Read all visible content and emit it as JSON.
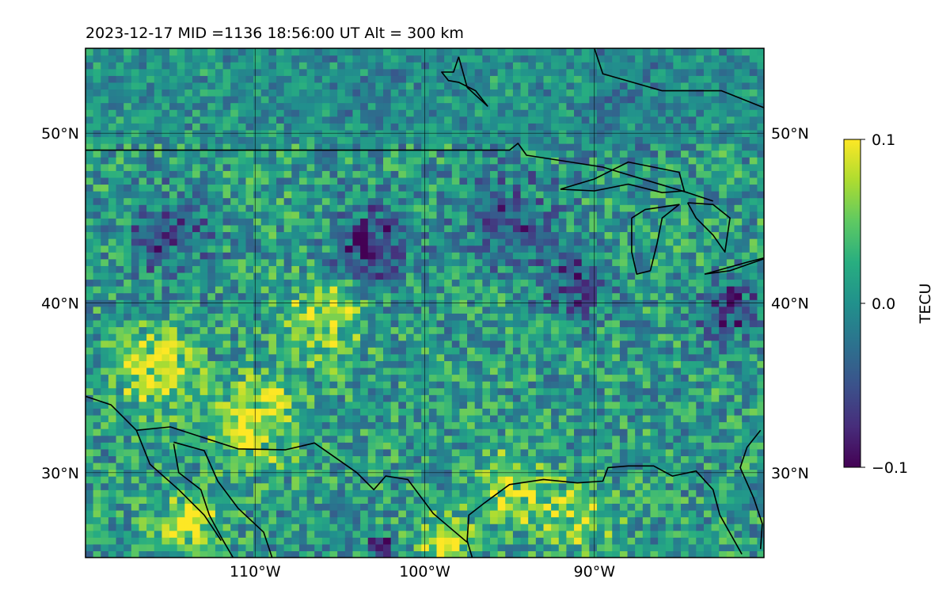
{
  "chart_data": {
    "type": "heatmap",
    "title": "2023-12-17  MID =1136    18:56:00  UT  Alt = 300 km",
    "projection": "map (longitude/latitude)",
    "xlim": [
      -120,
      -80
    ],
    "ylim": [
      25,
      55
    ],
    "x_ticks": [
      {
        "value": -110,
        "label": "110°W"
      },
      {
        "value": -100,
        "label": "100°W"
      },
      {
        "value": -90,
        "label": "90°W"
      }
    ],
    "y_ticks": [
      {
        "value": 30,
        "label": "30°N"
      },
      {
        "value": 40,
        "label": "40°N"
      },
      {
        "value": 50,
        "label": "50°N"
      }
    ],
    "y_ticks_both_sides": true,
    "grid": true,
    "colormap": "viridis",
    "colorbar": {
      "label": "TECU",
      "vmin": -0.1,
      "vmax": 0.1,
      "ticks": [
        {
          "value": 0.1,
          "label": "0.1"
        },
        {
          "value": 0.0,
          "label": "0.0"
        },
        {
          "value": -0.1,
          "label": "−0.1"
        }
      ],
      "placement": "right"
    },
    "field_description": "Gridded differential TEC over North America; mostly near 0 TECU with negative (dark) patches around 38-46N and positive (yellow) patches in the southwest 30-40N and along the Gulf coast.",
    "regions": [
      {
        "lon": -103,
        "lat": 43.5,
        "value": -0.09,
        "spread": 2.2
      },
      {
        "lon": -91,
        "lat": 41,
        "value": -0.08,
        "spread": 1.8
      },
      {
        "lon": -82,
        "lat": 39.5,
        "value": -0.08,
        "spread": 1.8
      },
      {
        "lon": -115,
        "lat": 44,
        "value": -0.06,
        "spread": 2.5
      },
      {
        "lon": -95,
        "lat": 45,
        "value": -0.05,
        "spread": 3.0
      },
      {
        "lon": -116,
        "lat": 36,
        "value": 0.09,
        "spread": 2.2
      },
      {
        "lon": -110,
        "lat": 33,
        "value": 0.08,
        "spread": 2.5
      },
      {
        "lon": -106,
        "lat": 39,
        "value": 0.07,
        "spread": 2.2
      },
      {
        "lon": -114,
        "lat": 27,
        "value": 0.08,
        "spread": 1.8
      },
      {
        "lon": -95,
        "lat": 29,
        "value": 0.07,
        "spread": 2.0
      },
      {
        "lon": -91,
        "lat": 27.5,
        "value": 0.06,
        "spread": 2.0
      },
      {
        "lon": -99,
        "lat": 26,
        "value": 0.07,
        "spread": 1.5
      },
      {
        "lon": -102.5,
        "lat": 25.5,
        "value": -0.1,
        "spread": 0.8
      },
      {
        "lon": -103,
        "lat": 52,
        "value": -0.02,
        "spread": 3.0
      },
      {
        "lon": -88,
        "lat": 52,
        "value": -0.03,
        "spread": 3.0
      }
    ],
    "coastlines": [
      {
        "name": "us-canada-border",
        "points": [
          [
            -120,
            49
          ],
          [
            -95,
            49
          ],
          [
            -94.5,
            49.4
          ],
          [
            -94,
            48.7
          ],
          [
            -89.5,
            48
          ],
          [
            -84.5,
            46.5
          ],
          [
            -83,
            46
          ]
        ]
      },
      {
        "name": "lake-superior",
        "points": [
          [
            -92,
            46.7
          ],
          [
            -90,
            47.3
          ],
          [
            -88,
            48.3
          ],
          [
            -85,
            47.7
          ],
          [
            -84.7,
            46.6
          ],
          [
            -86,
            46.5
          ],
          [
            -88,
            47
          ],
          [
            -90,
            46.6
          ],
          [
            -92,
            46.7
          ]
        ]
      },
      {
        "name": "lake-michigan",
        "points": [
          [
            -87.8,
            45
          ],
          [
            -87.8,
            43
          ],
          [
            -87.5,
            41.7
          ],
          [
            -86.7,
            41.9
          ],
          [
            -86.3,
            43.5
          ],
          [
            -86,
            45
          ],
          [
            -85,
            45.8
          ],
          [
            -87,
            45.5
          ],
          [
            -87.8,
            45
          ]
        ]
      },
      {
        "name": "lake-huron",
        "points": [
          [
            -84.5,
            45.9
          ],
          [
            -83,
            45.8
          ],
          [
            -82,
            45
          ],
          [
            -82.3,
            43
          ],
          [
            -83,
            44
          ],
          [
            -84,
            45
          ],
          [
            -84.5,
            45.9
          ]
        ]
      },
      {
        "name": "lake-erie",
        "points": [
          [
            -83.5,
            41.7
          ],
          [
            -81,
            42.4
          ],
          [
            -79,
            42.9
          ],
          [
            -80,
            42.6
          ],
          [
            -82,
            41.9
          ],
          [
            -83.5,
            41.7
          ]
        ]
      },
      {
        "name": "hudson-bay-shore",
        "points": [
          [
            -90,
            55
          ],
          [
            -89.5,
            53.5
          ],
          [
            -86,
            52.5
          ],
          [
            -82.5,
            52.5
          ],
          [
            -80,
            51.5
          ]
        ]
      },
      {
        "name": "island-north",
        "points": [
          [
            -98,
            54.5
          ],
          [
            -97.5,
            52.7
          ],
          [
            -96.3,
            51.6
          ],
          [
            -97,
            52.5
          ],
          [
            -98,
            53
          ],
          [
            -98.6,
            53.1
          ],
          [
            -99,
            53.6
          ],
          [
            -98.3,
            53.6
          ],
          [
            -98,
            54.5
          ]
        ]
      },
      {
        "name": "us-mexico-border",
        "points": [
          [
            -117,
            32.5
          ],
          [
            -115,
            32.7
          ],
          [
            -111,
            31.4
          ],
          [
            -108.2,
            31.35
          ],
          [
            -106.5,
            31.75
          ],
          [
            -104,
            30
          ],
          [
            -103,
            29
          ],
          [
            -102.3,
            29.8
          ],
          [
            -101,
            29.6
          ],
          [
            -99.5,
            27.6
          ],
          [
            -97.5,
            25.9
          ]
        ]
      },
      {
        "name": "gulf-coast",
        "points": [
          [
            -97.2,
            25
          ],
          [
            -97.5,
            26
          ],
          [
            -97.4,
            27.5
          ],
          [
            -96.5,
            28.2
          ],
          [
            -95,
            29.3
          ],
          [
            -93,
            29.6
          ],
          [
            -91,
            29.4
          ],
          [
            -89.5,
            29.5
          ],
          [
            -89.2,
            30.3
          ],
          [
            -88,
            30.4
          ],
          [
            -86.5,
            30.4
          ],
          [
            -85.4,
            29.8
          ],
          [
            -84,
            30.1
          ],
          [
            -83,
            29
          ],
          [
            -82.6,
            27.5
          ],
          [
            -81.3,
            25.2
          ]
        ]
      },
      {
        "name": "florida-atlantic",
        "points": [
          [
            -80.2,
            25.5
          ],
          [
            -80.1,
            27
          ],
          [
            -80.6,
            28.5
          ],
          [
            -81.4,
            30.3
          ],
          [
            -81,
            31.5
          ],
          [
            -80.2,
            32.5
          ]
        ]
      },
      {
        "name": "baja-pacific",
        "points": [
          [
            -120,
            34.5
          ],
          [
            -118.5,
            34
          ],
          [
            -117,
            32.5
          ],
          [
            -116.2,
            30.5
          ],
          [
            -114.5,
            29
          ],
          [
            -113,
            27.5
          ],
          [
            -112,
            26
          ]
        ]
      },
      {
        "name": "gulf-of-california-west",
        "points": [
          [
            -114.8,
            31.7
          ],
          [
            -114.5,
            30
          ],
          [
            -113.2,
            29
          ],
          [
            -112.7,
            27.5
          ],
          [
            -112,
            26.2
          ],
          [
            -111.3,
            25
          ]
        ]
      },
      {
        "name": "gulf-of-california-east",
        "points": [
          [
            -114.8,
            31.8
          ],
          [
            -113,
            31.3
          ],
          [
            -112.2,
            29.5
          ],
          [
            -111,
            27.9
          ],
          [
            -109.5,
            26.5
          ],
          [
            -109,
            25
          ]
        ]
      },
      {
        "name": "mexico-pacific",
        "points": [
          [
            -111,
            25
          ],
          [
            -110.5,
            24
          ]
        ]
      }
    ]
  }
}
